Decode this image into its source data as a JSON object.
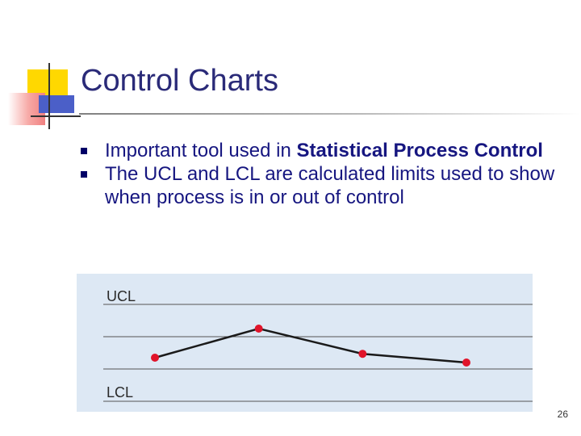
{
  "slide": {
    "title": "Control Charts",
    "bullets": [
      {
        "text_before": "Important tool used in ",
        "bold_text": "Statistical Process Control"
      },
      {
        "text": "The UCL and LCL are calculated limits used to show when process is in or out of control"
      }
    ],
    "page_number": "26"
  },
  "chart_data": {
    "type": "line",
    "title": "",
    "labels": {
      "upper": "UCL",
      "lower": "LCL"
    },
    "x": [
      1,
      2,
      3,
      4
    ],
    "series": [
      {
        "values": [
          -0.1,
          0.5,
          -0.02,
          -0.2
        ]
      }
    ],
    "ylim": [
      -1,
      1
    ],
    "grid": true,
    "colors": {
      "background": "#dde8f4",
      "line": "#1a1a1a",
      "marker": "#e0142a",
      "gridline": "#555555"
    }
  }
}
